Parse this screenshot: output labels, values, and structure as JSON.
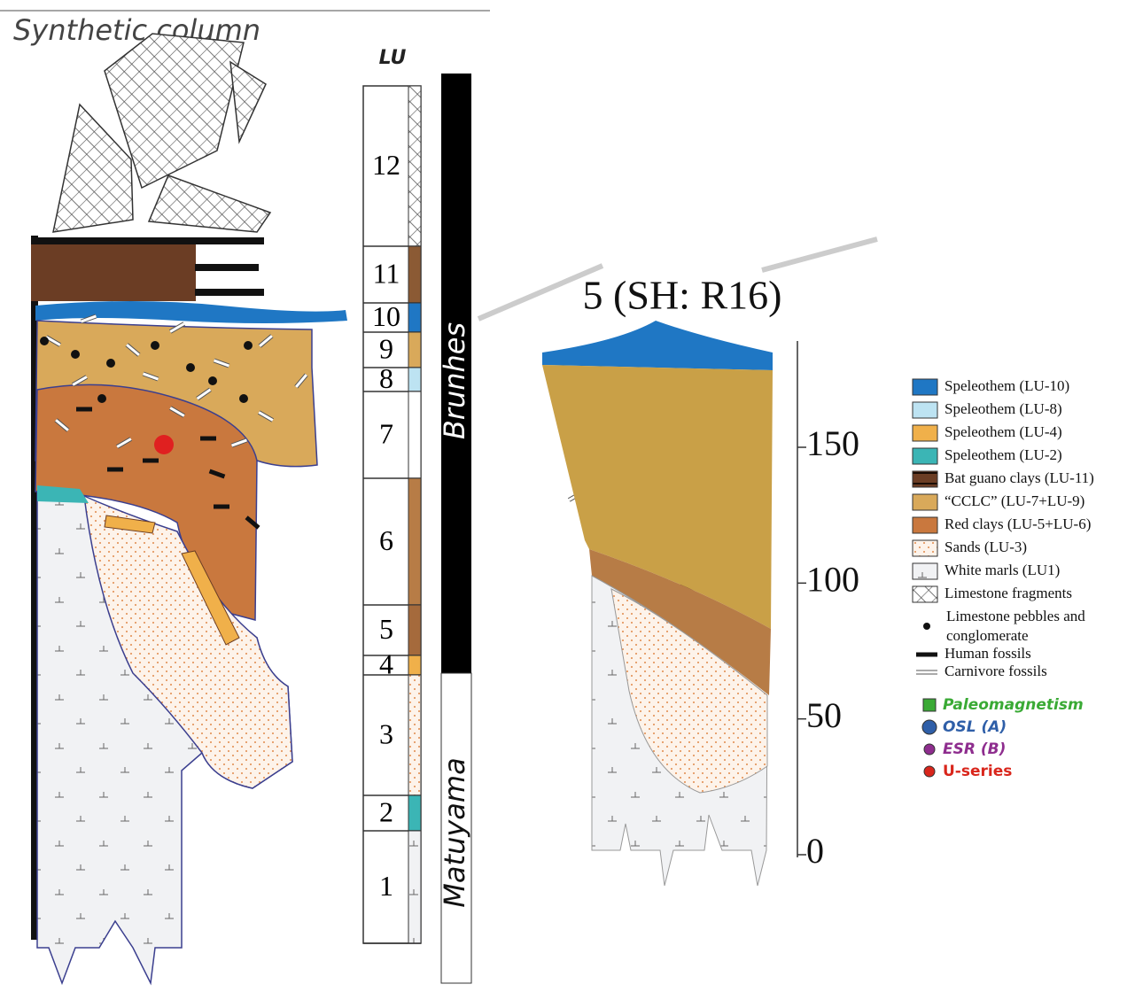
{
  "synthetic": {
    "title": "Synthetic column",
    "lu_header": "LU",
    "units": [
      "12",
      "11",
      "10",
      "9",
      "8",
      "7",
      "6",
      "5",
      "4",
      "3",
      "2",
      "1"
    ],
    "chrons": [
      "Brunhes",
      "Matuyama"
    ]
  },
  "section": {
    "title": "5 (SH: R16)",
    "scale": {
      "ticks": [
        150,
        100,
        50,
        0
      ]
    }
  },
  "legend": {
    "items": [
      "Speleothem (LU-10)",
      "Speleothem (LU-8)",
      "Speleothem (LU-4)",
      "Speleothem (LU-2)",
      "Bat guano clays (LU-11)",
      "“CCLC” (LU-7+LU-9)",
      "Red clays (LU-5+LU-6)",
      "Sands (LU-3)",
      "White marls (LU1)",
      "Limestone fragments",
      "Limestone pebbles and conglomerate",
      "Human fossils",
      "Carnivore fossils"
    ],
    "methods": [
      "Paleomagnetism",
      "OSL (A)",
      "ESR (B)",
      "U-series"
    ]
  }
}
